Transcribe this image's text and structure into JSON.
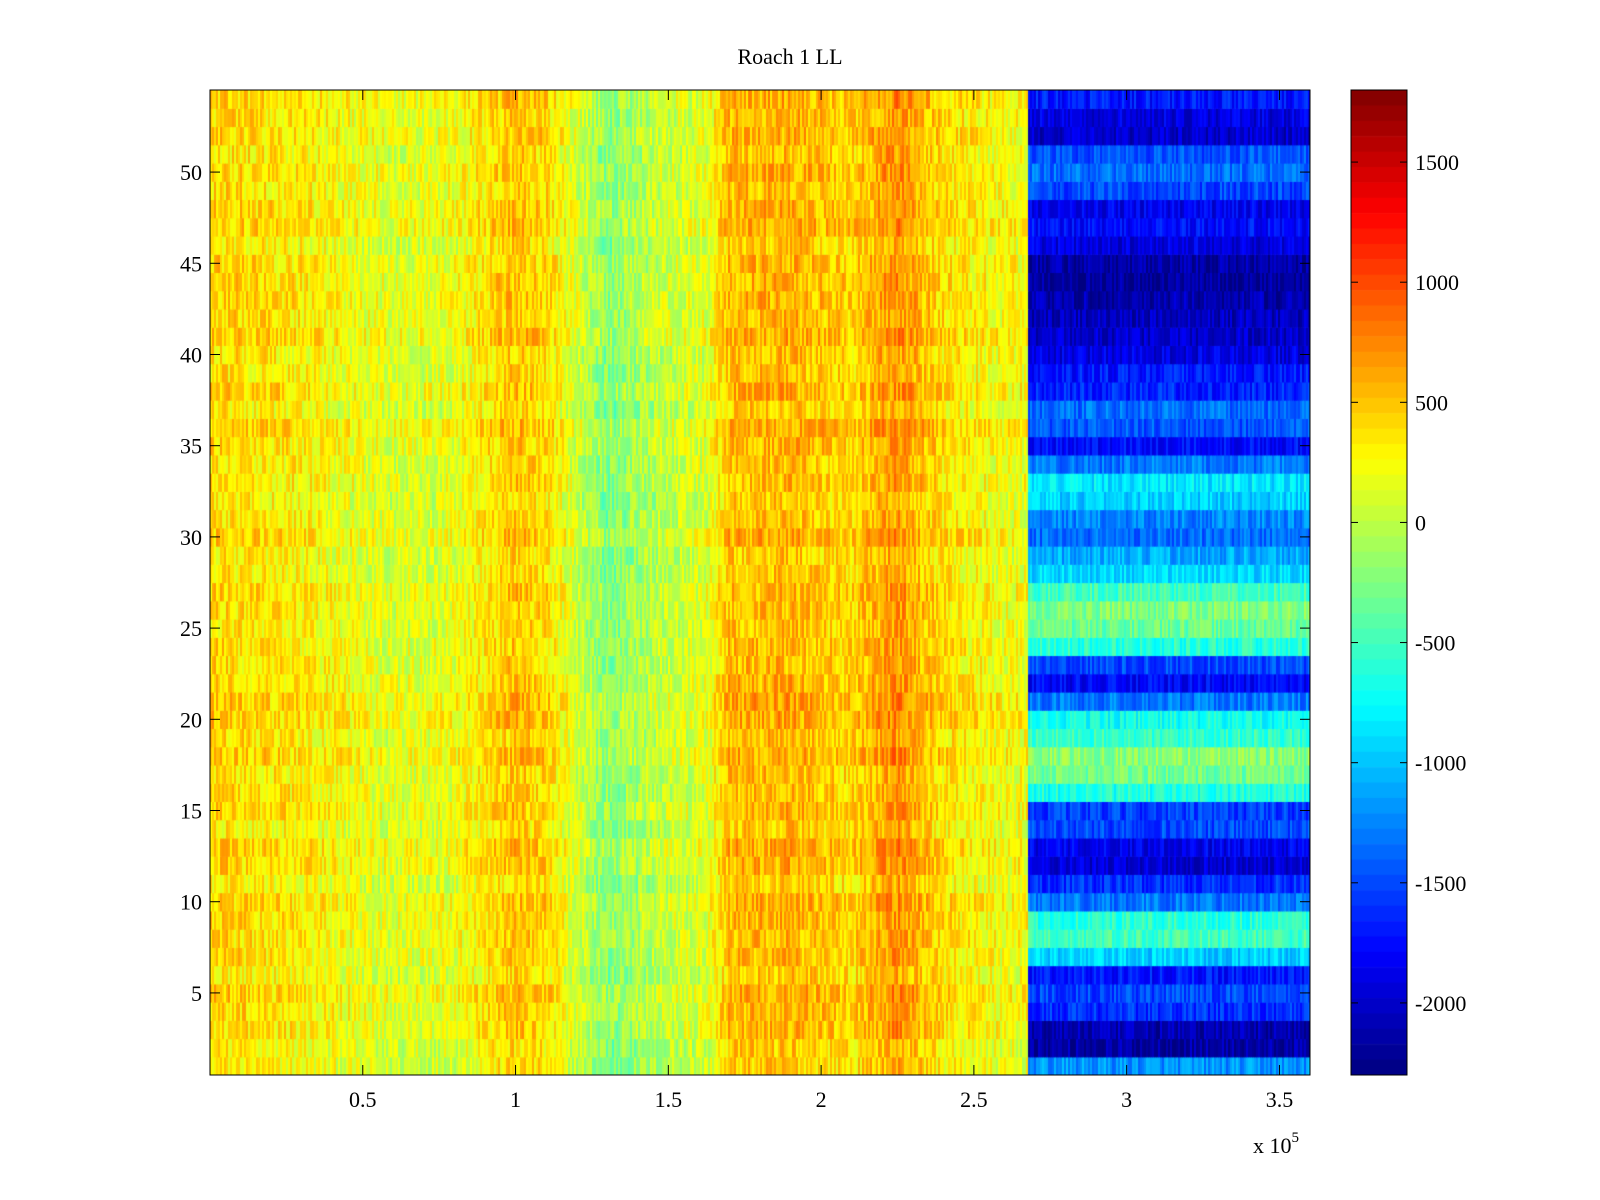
{
  "chart_data": {
    "type": "heatmap",
    "title": "Roach 1 LL",
    "xlabel": "",
    "ylabel": "",
    "x_multiplier_label": "x 10",
    "x_multiplier_exponent": "5",
    "x_scale": 100000,
    "xlim": [
      0,
      3.6
    ],
    "ylim": [
      0.5,
      54.5
    ],
    "n_rows": 54,
    "x_ticks": [
      {
        "value": 0.5,
        "label": "0.5"
      },
      {
        "value": 1,
        "label": "1"
      },
      {
        "value": 1.5,
        "label": "1.5"
      },
      {
        "value": 2,
        "label": "2"
      },
      {
        "value": 2.5,
        "label": "2.5"
      },
      {
        "value": 3,
        "label": "3"
      },
      {
        "value": 3.5,
        "label": "3.5"
      }
    ],
    "y_ticks": [
      {
        "value": 5,
        "label": "5"
      },
      {
        "value": 10,
        "label": "10"
      },
      {
        "value": 15,
        "label": "15"
      },
      {
        "value": 20,
        "label": "20"
      },
      {
        "value": 25,
        "label": "25"
      },
      {
        "value": 30,
        "label": "30"
      },
      {
        "value": 35,
        "label": "35"
      },
      {
        "value": 40,
        "label": "40"
      },
      {
        "value": 45,
        "label": "45"
      },
      {
        "value": 50,
        "label": "50"
      }
    ],
    "colorbar": {
      "colormap": "jet",
      "clim": [
        -2300,
        1800
      ],
      "ticks": [
        {
          "value": 1500,
          "label": "1500"
        },
        {
          "value": 1000,
          "label": "1000"
        },
        {
          "value": 500,
          "label": "500"
        },
        {
          "value": 0,
          "label": "0"
        },
        {
          "value": -500,
          "label": "-500"
        },
        {
          "value": -1000,
          "label": "-1000"
        },
        {
          "value": -1500,
          "label": "-1500"
        },
        {
          "value": -2000,
          "label": "-2000"
        }
      ]
    },
    "x_profile": [
      {
        "x": 0.0,
        "v": 420
      },
      {
        "x": 0.3,
        "v": 320
      },
      {
        "x": 0.6,
        "v": 120
      },
      {
        "x": 0.8,
        "v": 180
      },
      {
        "x": 1.0,
        "v": 500
      },
      {
        "x": 1.1,
        "v": 400
      },
      {
        "x": 1.3,
        "v": -220
      },
      {
        "x": 1.5,
        "v": 60
      },
      {
        "x": 1.62,
        "v": 120
      },
      {
        "x": 1.7,
        "v": 520
      },
      {
        "x": 1.9,
        "v": 560
      },
      {
        "x": 2.1,
        "v": 420
      },
      {
        "x": 2.25,
        "v": 700
      },
      {
        "x": 2.4,
        "v": 380
      },
      {
        "x": 2.6,
        "v": 220
      },
      {
        "x": 2.68,
        "v": 240
      }
    ],
    "boundary_x": 2.68,
    "right_region_rows": [
      {
        "y": 1,
        "v": -1200
      },
      {
        "y": 2,
        "v": -2150
      },
      {
        "y": 3,
        "v": -2100
      },
      {
        "y": 4,
        "v": -1600
      },
      {
        "y": 5,
        "v": -1500
      },
      {
        "y": 6,
        "v": -1700
      },
      {
        "y": 7,
        "v": -950
      },
      {
        "y": 8,
        "v": -500
      },
      {
        "y": 9,
        "v": -600
      },
      {
        "y": 10,
        "v": -1300
      },
      {
        "y": 11,
        "v": -1600
      },
      {
        "y": 12,
        "v": -1950
      },
      {
        "y": 13,
        "v": -1850
      },
      {
        "y": 14,
        "v": -1500
      },
      {
        "y": 15,
        "v": -1550
      },
      {
        "y": 16,
        "v": -650
      },
      {
        "y": 17,
        "v": -300
      },
      {
        "y": 18,
        "v": -200
      },
      {
        "y": 19,
        "v": -550
      },
      {
        "y": 20,
        "v": -700
      },
      {
        "y": 21,
        "v": -1300
      },
      {
        "y": 22,
        "v": -1800
      },
      {
        "y": 23,
        "v": -1500
      },
      {
        "y": 24,
        "v": -600
      },
      {
        "y": 25,
        "v": -350
      },
      {
        "y": 26,
        "v": -250
      },
      {
        "y": 27,
        "v": -500
      },
      {
        "y": 28,
        "v": -900
      },
      {
        "y": 29,
        "v": -1100
      },
      {
        "y": 30,
        "v": -1350
      },
      {
        "y": 31,
        "v": -1250
      },
      {
        "y": 32,
        "v": -950
      },
      {
        "y": 33,
        "v": -850
      },
      {
        "y": 34,
        "v": -1300
      },
      {
        "y": 35,
        "v": -1750
      },
      {
        "y": 36,
        "v": -1450
      },
      {
        "y": 37,
        "v": -1350
      },
      {
        "y": 38,
        "v": -1650
      },
      {
        "y": 39,
        "v": -1700
      },
      {
        "y": 40,
        "v": -1900
      },
      {
        "y": 41,
        "v": -2000
      },
      {
        "y": 42,
        "v": -2050
      },
      {
        "y": 43,
        "v": -2100
      },
      {
        "y": 44,
        "v": -2200
      },
      {
        "y": 45,
        "v": -2150
      },
      {
        "y": 46,
        "v": -1900
      },
      {
        "y": 47,
        "v": -1750
      },
      {
        "y": 48,
        "v": -1850
      },
      {
        "y": 49,
        "v": -1500
      },
      {
        "y": 50,
        "v": -1350
      },
      {
        "y": 51,
        "v": -1450
      },
      {
        "y": 52,
        "v": -2000
      },
      {
        "y": 53,
        "v": -1900
      },
      {
        "y": 54,
        "v": -1700
      }
    ]
  }
}
